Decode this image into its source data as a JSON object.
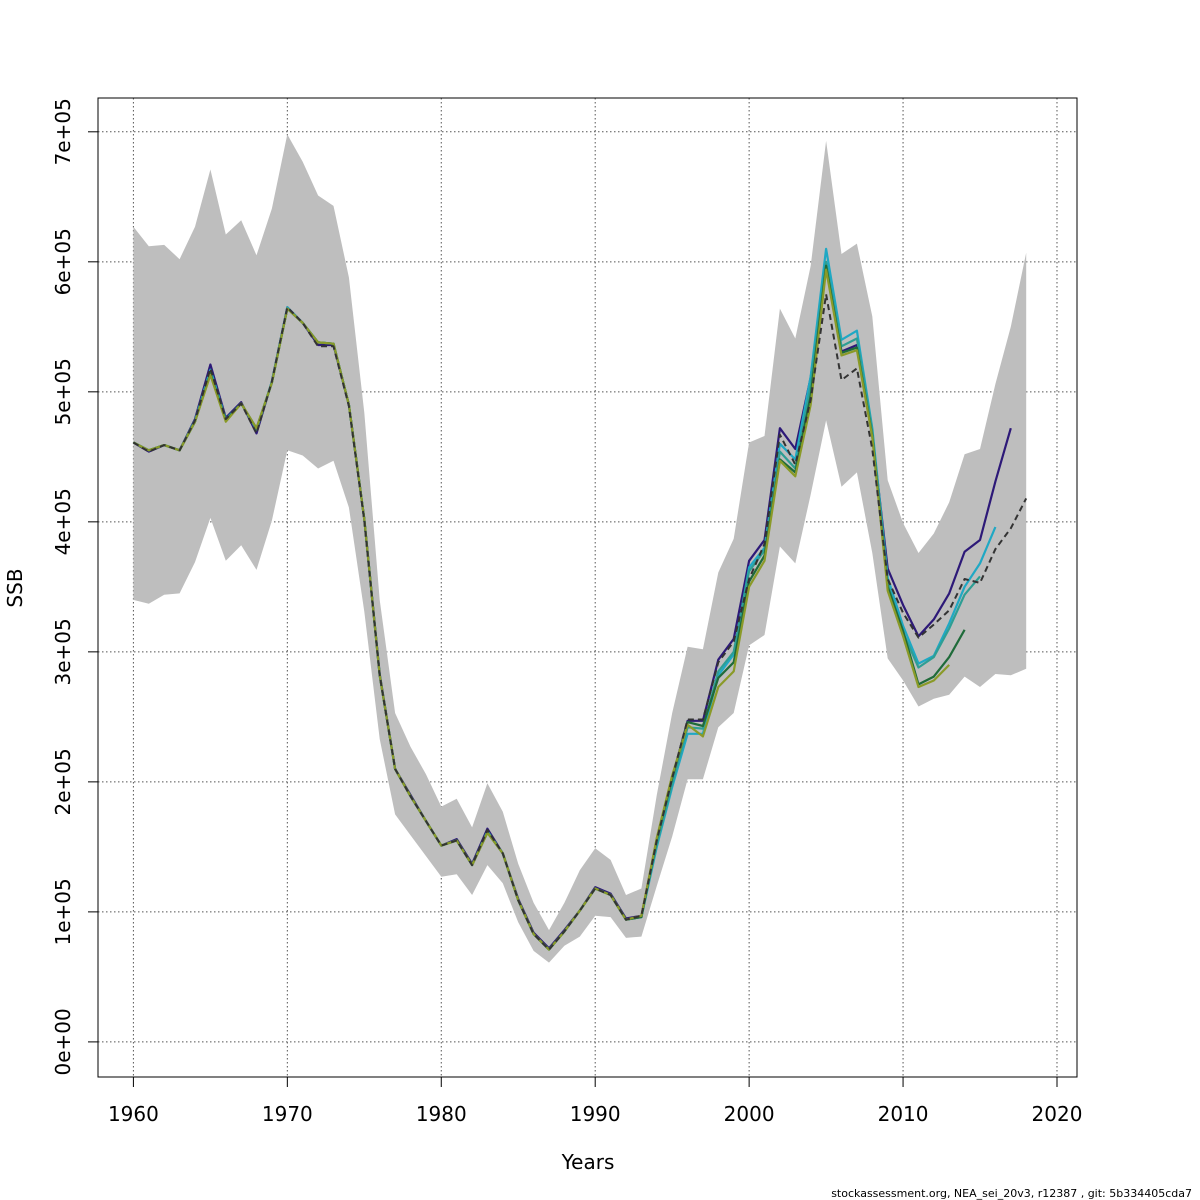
{
  "chart_data": {
    "type": "line",
    "xlabel": "Years",
    "ylabel": "SSB",
    "xlim": [
      1957.7,
      2021.3
    ],
    "ylim": [
      -27000,
      726000
    ],
    "grid": true,
    "x_ticks": [
      1960,
      1970,
      1980,
      1990,
      2000,
      2010,
      2020
    ],
    "x_tick_labels": [
      "1960",
      "1970",
      "1980",
      "1990",
      "2000",
      "2010",
      "2020"
    ],
    "y_ticks": [
      0,
      100000,
      200000,
      300000,
      400000,
      500000,
      600000,
      700000
    ],
    "y_tick_labels": [
      "0e+00",
      "1e+05",
      "2e+05",
      "3e+05",
      "4e+05",
      "5e+05",
      "6e+05",
      "7e+05"
    ],
    "band": {
      "x": [
        1960,
        1961,
        1962,
        1963,
        1964,
        1965,
        1966,
        1967,
        1968,
        1969,
        1970,
        1971,
        1972,
        1973,
        1974,
        1975,
        1976,
        1977,
        1978,
        1979,
        1980,
        1981,
        1982,
        1983,
        1984,
        1985,
        1986,
        1987,
        1988,
        1989,
        1990,
        1991,
        1992,
        1993,
        1994,
        1995,
        1996,
        1997,
        1998,
        1999,
        2000,
        2001,
        2002,
        2003,
        2004,
        2005,
        2006,
        2007,
        2008,
        2009,
        2010,
        2011,
        2012,
        2013,
        2014,
        2015,
        2016,
        2017,
        2018
      ],
      "upper": [
        627000,
        612000,
        613000,
        602000,
        627000,
        671000,
        621000,
        632000,
        605000,
        641000,
        698000,
        677000,
        651000,
        643000,
        588000,
        484000,
        340000,
        253000,
        227000,
        206000,
        181000,
        187000,
        165000,
        199000,
        177000,
        137000,
        107000,
        86000,
        107000,
        132000,
        149000,
        140000,
        113000,
        118000,
        190000,
        253000,
        304000,
        302000,
        361000,
        387000,
        461000,
        466000,
        564000,
        541000,
        597000,
        693000,
        606000,
        614000,
        558000,
        432000,
        399000,
        376000,
        391000,
        415000,
        452000,
        456000,
        506000,
        550000,
        607000
      ],
      "lower": [
        340000,
        337000,
        344000,
        345000,
        369000,
        403000,
        370000,
        382000,
        363000,
        401000,
        455000,
        451000,
        441000,
        447000,
        411000,
        331000,
        233000,
        175000,
        159000,
        143000,
        127000,
        129000,
        113000,
        136000,
        122000,
        92000,
        70000,
        61000,
        74000,
        81000,
        97000,
        96000,
        80000,
        81000,
        120000,
        158000,
        202000,
        202000,
        242000,
        253000,
        305000,
        313000,
        381000,
        368000,
        421000,
        478000,
        427000,
        438000,
        376000,
        295000,
        278000,
        258000,
        264000,
        267000,
        281000,
        273000,
        283000,
        282000,
        287000
      ]
    },
    "series": [
      {
        "color": "#2d1978",
        "x": [
          1960,
          1961,
          1962,
          1963,
          1964,
          1965,
          1966,
          1967,
          1968,
          1969,
          1970,
          1971,
          1972,
          1973,
          1974,
          1975,
          1976,
          1977,
          1978,
          1979,
          1980,
          1981,
          1982,
          1983,
          1984,
          1985,
          1986,
          1987,
          1988,
          1989,
          1990,
          1991,
          1992,
          1993,
          1994,
          1995,
          1996,
          1997,
          1998,
          1999,
          2000,
          2001,
          2002,
          2003,
          2004,
          2005,
          2006,
          2007,
          2008,
          2009,
          2010,
          2011,
          2012,
          2013,
          2014,
          2015,
          2016,
          2017
        ],
        "y": [
          461000,
          454000,
          459000,
          455000,
          479000,
          521000,
          480000,
          492000,
          468000,
          508000,
          565000,
          553000,
          536000,
          536000,
          490000,
          402000,
          283000,
          210000,
          190000,
          170000,
          151000,
          156000,
          137000,
          164000,
          145000,
          110000,
          84000,
          72000,
          86000,
          101000,
          119000,
          114000,
          95000,
          97000,
          155000,
          203000,
          247000,
          247000,
          294000,
          310000,
          370000,
          386000,
          472000,
          456000,
          511000,
          597000,
          531000,
          536000,
          467000,
          364000,
          336000,
          312000,
          325000,
          345000,
          377000,
          386000,
          431000,
          472000
        ]
      },
      {
        "color": "#1fa8c4",
        "x": [
          1960,
          1961,
          1962,
          1963,
          1964,
          1965,
          1966,
          1967,
          1968,
          1969,
          1970,
          1971,
          1972,
          1973,
          1974,
          1975,
          1976,
          1977,
          1978,
          1979,
          1980,
          1981,
          1982,
          1983,
          1984,
          1985,
          1986,
          1987,
          1988,
          1989,
          1990,
          1991,
          1992,
          1993,
          1994,
          1995,
          1996,
          1997,
          1998,
          1999,
          2000,
          2001,
          2002,
          2003,
          2004,
          2005,
          2006,
          2007,
          2008,
          2009,
          2010,
          2011,
          2012,
          2013,
          2014,
          2015,
          2016
        ],
        "y": [
          461000,
          455000,
          459000,
          455000,
          478000,
          517000,
          479000,
          491000,
          471000,
          508000,
          565000,
          553000,
          538000,
          537000,
          490000,
          402000,
          282000,
          210000,
          189000,
          170000,
          151000,
          155000,
          136000,
          162000,
          145000,
          109000,
          83000,
          71000,
          85000,
          101000,
          118000,
          113000,
          94000,
          96000,
          150000,
          196000,
          237000,
          237000,
          282000,
          298000,
          365000,
          380000,
          460000,
          448000,
          512000,
          610000,
          540000,
          547000,
          472000,
          357000,
          320000,
          291000,
          297000,
          322000,
          350000,
          368000,
          396000
        ]
      },
      {
        "color": "#2e9e94",
        "x": [
          1960,
          1961,
          1962,
          1963,
          1964,
          1965,
          1966,
          1967,
          1968,
          1969,
          1970,
          1971,
          1972,
          1973,
          1974,
          1975,
          1976,
          1977,
          1978,
          1979,
          1980,
          1981,
          1982,
          1983,
          1984,
          1985,
          1986,
          1987,
          1988,
          1989,
          1990,
          1991,
          1992,
          1993,
          1994,
          1995,
          1996,
          1997,
          1998,
          1999,
          2000,
          2001,
          2002,
          2003,
          2004,
          2005,
          2006,
          2007,
          2008,
          2009,
          2010,
          2011,
          2012,
          2013,
          2014,
          2015
        ],
        "y": [
          461000,
          455000,
          459000,
          455000,
          477000,
          515000,
          478000,
          491000,
          471000,
          507000,
          564000,
          553000,
          538000,
          537000,
          490000,
          402000,
          282000,
          210000,
          189000,
          170000,
          151000,
          155000,
          136000,
          162000,
          145000,
          109000,
          83000,
          71000,
          85000,
          101000,
          118000,
          113000,
          94000,
          96000,
          152000,
          199000,
          242000,
          241000,
          285000,
          300000,
          362000,
          378000,
          454000,
          441000,
          505000,
          600000,
          535000,
          541000,
          470000,
          352000,
          315000,
          288000,
          296000,
          318000,
          344000,
          358000
        ]
      },
      {
        "color": "#1f6b3a",
        "x": [
          1960,
          1961,
          1962,
          1963,
          1964,
          1965,
          1966,
          1967,
          1968,
          1969,
          1970,
          1971,
          1972,
          1973,
          1974,
          1975,
          1976,
          1977,
          1978,
          1979,
          1980,
          1981,
          1982,
          1983,
          1984,
          1985,
          1986,
          1987,
          1988,
          1989,
          1990,
          1991,
          1992,
          1993,
          1994,
          1995,
          1996,
          1997,
          1998,
          1999,
          2000,
          2001,
          2002,
          2003,
          2004,
          2005,
          2006,
          2007,
          2008,
          2009,
          2010,
          2011,
          2012,
          2013,
          2014
        ],
        "y": [
          461000,
          455000,
          459000,
          455000,
          477000,
          514000,
          478000,
          491000,
          472000,
          507000,
          564000,
          553000,
          538000,
          537000,
          490000,
          402000,
          282000,
          210000,
          189000,
          170000,
          151000,
          155000,
          136000,
          161000,
          145000,
          109000,
          83000,
          71000,
          85000,
          101000,
          118000,
          113000,
          94000,
          96000,
          156000,
          203000,
          246000,
          243000,
          280000,
          292000,
          354000,
          374000,
          448000,
          438000,
          497000,
          597000,
          530000,
          534000,
          466000,
          350000,
          316000,
          275000,
          281000,
          296000,
          317000
        ]
      },
      {
        "color": "#8a9a28",
        "x": [
          1960,
          1961,
          1962,
          1963,
          1964,
          1965,
          1966,
          1967,
          1968,
          1969,
          1970,
          1971,
          1972,
          1973,
          1974,
          1975,
          1976,
          1977,
          1978,
          1979,
          1980,
          1981,
          1982,
          1983,
          1984,
          1985,
          1986,
          1987,
          1988,
          1989,
          1990,
          1991,
          1992,
          1993,
          1994,
          1995,
          1996,
          1997,
          1998,
          1999,
          2000,
          2001,
          2002,
          2003,
          2004,
          2005,
          2006,
          2007,
          2008,
          2009,
          2010,
          2011,
          2012,
          2013
        ],
        "y": [
          461000,
          455000,
          459000,
          455000,
          477000,
          513000,
          477000,
          491000,
          472000,
          507000,
          564000,
          553000,
          538000,
          537000,
          490000,
          402000,
          282000,
          210000,
          189000,
          170000,
          151000,
          155000,
          136000,
          161000,
          145000,
          109000,
          83000,
          71000,
          85000,
          101000,
          118000,
          113000,
          94000,
          97000,
          157000,
          205000,
          244000,
          235000,
          273000,
          285000,
          350000,
          370000,
          447000,
          435000,
          490000,
          594000,
          528000,
          532000,
          465000,
          347000,
          312000,
          273000,
          278000,
          290000
        ]
      },
      {
        "color": "#333333",
        "dashed": true,
        "x": [
          1960,
          1961,
          1962,
          1963,
          1964,
          1965,
          1966,
          1967,
          1968,
          1969,
          1970,
          1971,
          1972,
          1973,
          1974,
          1975,
          1976,
          1977,
          1978,
          1979,
          1980,
          1981,
          1982,
          1983,
          1984,
          1985,
          1986,
          1987,
          1988,
          1989,
          1990,
          1991,
          1992,
          1993,
          1994,
          1995,
          1996,
          1997,
          1998,
          1999,
          2000,
          2001,
          2002,
          2003,
          2004,
          2005,
          2006,
          2007,
          2008,
          2009,
          2010,
          2011,
          2012,
          2013,
          2014,
          2015,
          2016,
          2017,
          2018
        ],
        "y": [
          461000,
          454000,
          459000,
          455000,
          478000,
          518000,
          479000,
          491000,
          468000,
          508000,
          565000,
          553000,
          535000,
          535000,
          489000,
          401000,
          282000,
          210000,
          189000,
          170000,
          151000,
          155000,
          136000,
          163000,
          145000,
          109000,
          83000,
          71000,
          85000,
          101000,
          118000,
          113000,
          94000,
          97000,
          155000,
          203000,
          248000,
          248000,
          292000,
          308000,
          356000,
          383000,
          467000,
          444000,
          494000,
          575000,
          509000,
          518000,
          456000,
          356000,
          330000,
          311000,
          321000,
          332000,
          356000,
          353000,
          379000,
          395000,
          418000
        ]
      }
    ]
  },
  "footer": {
    "text": "stockassessment.org, NEA_sei_20v3, r12387 , git: 5b334405cda7"
  }
}
